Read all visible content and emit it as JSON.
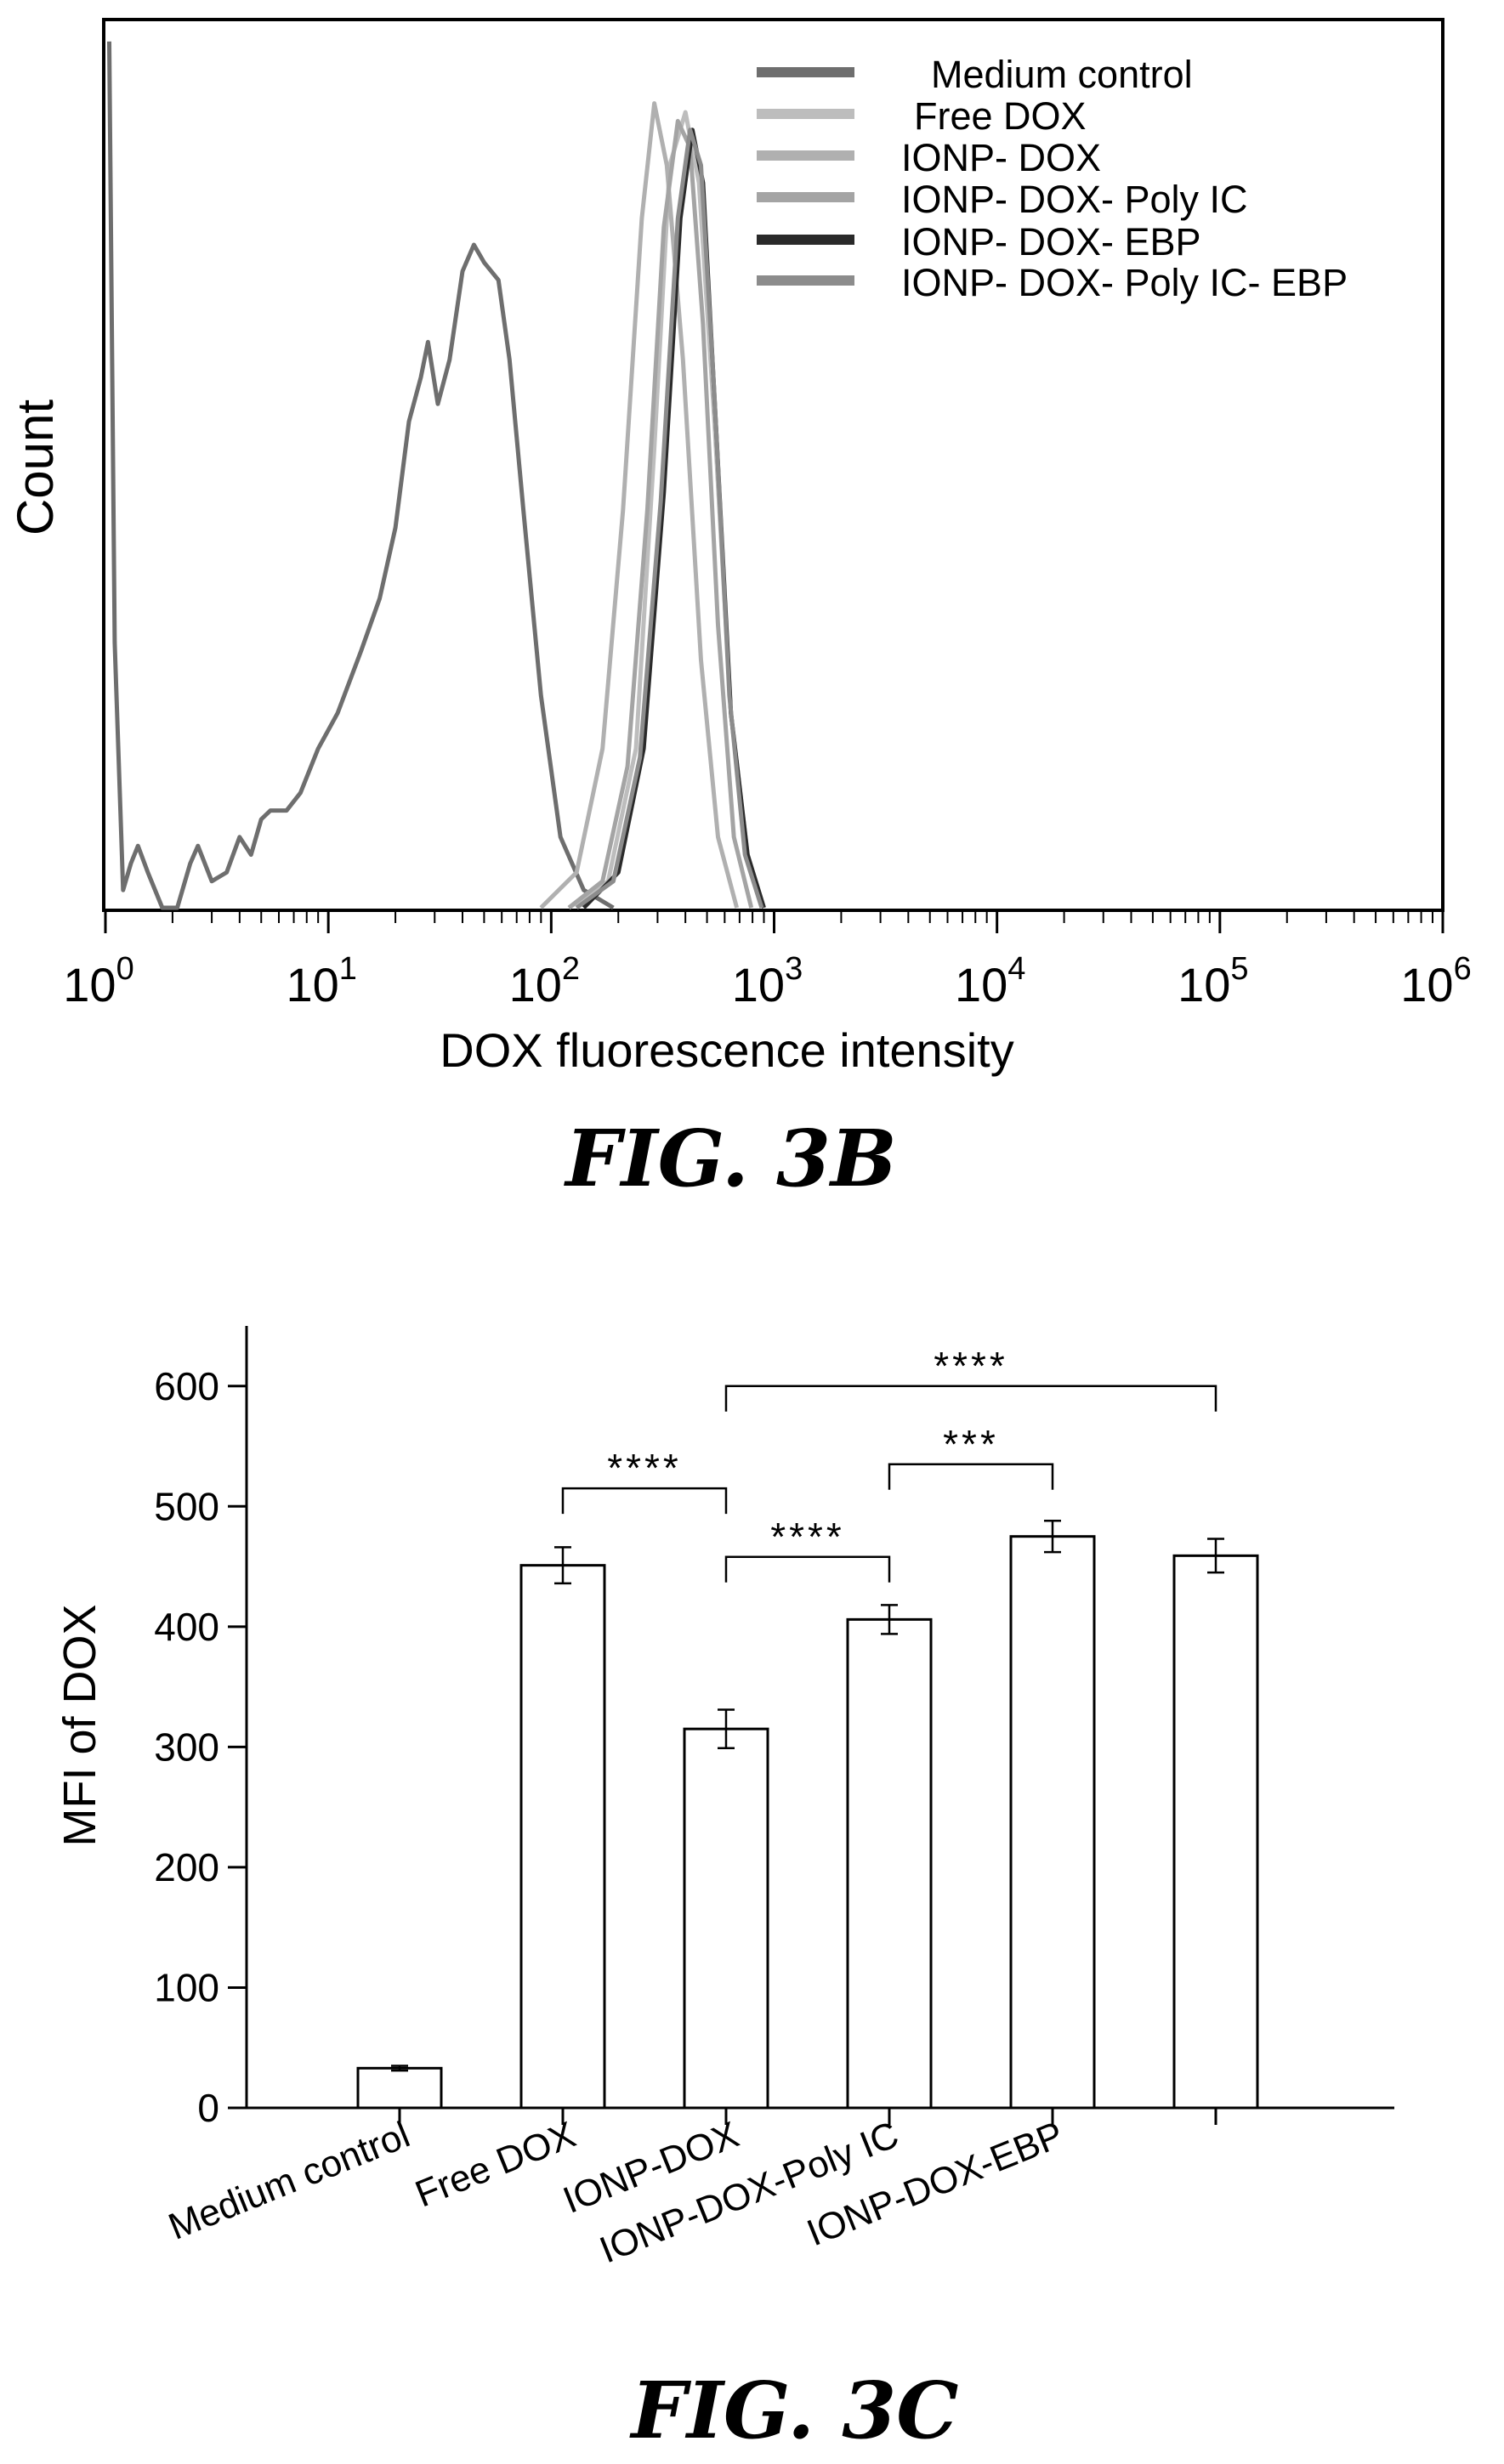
{
  "figure_b": {
    "caption": "FIG. 3B",
    "chart_data": {
      "type": "line",
      "xlabel": "DOX fluorescence intensity",
      "ylabel": "Count",
      "xscale": "log",
      "xlim": [
        1,
        1000000
      ],
      "x_ticks": [
        {
          "base": "10",
          "exp": "0",
          "value": 1
        },
        {
          "base": "10",
          "exp": "1",
          "value": 10
        },
        {
          "base": "10",
          "exp": "2",
          "value": 100
        },
        {
          "base": "10",
          "exp": "3",
          "value": 1000
        },
        {
          "base": "10",
          "exp": "4",
          "value": 10000
        },
        {
          "base": "10",
          "exp": "5",
          "value": 100000
        },
        {
          "base": "10",
          "exp": "6",
          "value": 1000000
        }
      ],
      "legend_position": "top-right",
      "series": [
        {
          "name": "Medium control",
          "color": "#6e6e6e",
          "points": [
            [
              1.04,
              0.98
            ],
            [
              1.1,
              0.3
            ],
            [
              1.2,
              0.02
            ],
            [
              1.3,
              0.05
            ],
            [
              1.4,
              0.07
            ],
            [
              1.55,
              0.04
            ],
            [
              1.8,
              0.0
            ],
            [
              2.1,
              0.0
            ],
            [
              2.4,
              0.05
            ],
            [
              2.6,
              0.07
            ],
            [
              3.0,
              0.03
            ],
            [
              3.5,
              0.04
            ],
            [
              4.0,
              0.08
            ],
            [
              4.5,
              0.06
            ],
            [
              5.0,
              0.1
            ],
            [
              5.5,
              0.11
            ],
            [
              6.5,
              0.11
            ],
            [
              7.5,
              0.13
            ],
            [
              9,
              0.18
            ],
            [
              11,
              0.22
            ],
            [
              14,
              0.29
            ],
            [
              17,
              0.35
            ],
            [
              20,
              0.43
            ],
            [
              23,
              0.55
            ],
            [
              26,
              0.6
            ],
            [
              28,
              0.64
            ],
            [
              31,
              0.57
            ],
            [
              35,
              0.62
            ],
            [
              40,
              0.72
            ],
            [
              45,
              0.75
            ],
            [
              50,
              0.73
            ],
            [
              58,
              0.71
            ],
            [
              65,
              0.62
            ],
            [
              75,
              0.45
            ],
            [
              90,
              0.24
            ],
            [
              110,
              0.08
            ],
            [
              140,
              0.02
            ],
            [
              190,
              0.0
            ]
          ]
        },
        {
          "name": "Free DOX",
          "color": "#bdbdbd",
          "points": [
            [
              120,
              0.0
            ],
            [
              180,
              0.03
            ],
            [
              240,
              0.18
            ],
            [
              290,
              0.52
            ],
            [
              340,
              0.84
            ],
            [
              400,
              0.9
            ],
            [
              460,
              0.82
            ],
            [
              540,
              0.55
            ],
            [
              640,
              0.22
            ],
            [
              760,
              0.06
            ],
            [
              900,
              0.0
            ]
          ]
        },
        {
          "name": "IONP- DOX",
          "color": "#b0b0b0",
          "points": [
            [
              90,
              0.0
            ],
            [
              130,
              0.04
            ],
            [
              170,
              0.18
            ],
            [
              210,
              0.45
            ],
            [
              255,
              0.78
            ],
            [
              290,
              0.91
            ],
            [
              330,
              0.84
            ],
            [
              390,
              0.62
            ],
            [
              470,
              0.28
            ],
            [
              560,
              0.08
            ],
            [
              680,
              0.0
            ]
          ]
        },
        {
          "name": "IONP- DOX-  Poly IC",
          "color": "#a4a4a4",
          "points": [
            [
              120,
              0.0
            ],
            [
              170,
              0.03
            ],
            [
              220,
              0.16
            ],
            [
              270,
              0.45
            ],
            [
              320,
              0.77
            ],
            [
              370,
              0.89
            ],
            [
              420,
              0.86
            ],
            [
              480,
              0.66
            ],
            [
              560,
              0.32
            ],
            [
              660,
              0.08
            ],
            [
              790,
              0.0
            ]
          ]
        },
        {
          "name": "IONP- DOX- EBP",
          "color": "#2a2a2a",
          "points": [
            [
              140,
              0.0
            ],
            [
              200,
              0.04
            ],
            [
              260,
              0.18
            ],
            [
              320,
              0.47
            ],
            [
              380,
              0.78
            ],
            [
              430,
              0.88
            ],
            [
              480,
              0.82
            ],
            [
              550,
              0.54
            ],
            [
              640,
              0.22
            ],
            [
              760,
              0.06
            ],
            [
              900,
              0.0
            ]
          ]
        },
        {
          "name": "IONP- DOX-  Poly IC- EBP",
          "color": "#8c8c8c",
          "points": [
            [
              130,
              0.0
            ],
            [
              190,
              0.03
            ],
            [
              250,
              0.17
            ],
            [
              310,
              0.46
            ],
            [
              370,
              0.78
            ],
            [
              420,
              0.88
            ],
            [
              470,
              0.84
            ],
            [
              540,
              0.58
            ],
            [
              630,
              0.24
            ],
            [
              740,
              0.06
            ],
            [
              880,
              0.0
            ]
          ]
        }
      ]
    }
  },
  "figure_c": {
    "caption": "FIG. 3C",
    "chart_data": {
      "type": "bar",
      "ylabel": "MFI of DOX",
      "ylim": [
        0,
        650
      ],
      "yticks": [
        {
          "value": 0,
          "label": "0"
        },
        {
          "value": 100,
          "label": "100"
        },
        {
          "value": 200,
          "label": "200"
        },
        {
          "value": 300,
          "label": "300"
        },
        {
          "value": 400,
          "label": "400"
        },
        {
          "value": 500,
          "label": "500"
        },
        {
          "value": 600,
          "label": "600"
        }
      ],
      "categories": [
        "Medium control",
        "Free DOX",
        "IONP-DOX",
        "IONP-DOX-Poly IC",
        "IONP-DOX-EBP",
        ""
      ],
      "values": [
        33,
        451,
        315,
        406,
        475,
        459
      ],
      "errors": [
        2,
        15,
        16,
        12,
        13,
        14
      ],
      "significance": [
        {
          "from": 1,
          "to": 2,
          "label": "****",
          "y": 515
        },
        {
          "from": 2,
          "to": 3,
          "label": "****",
          "y": 458
        },
        {
          "from": 3,
          "to": 4,
          "label": "***",
          "y": 535
        },
        {
          "from": 2,
          "to": 5,
          "label": "****",
          "y": 600
        }
      ]
    }
  }
}
